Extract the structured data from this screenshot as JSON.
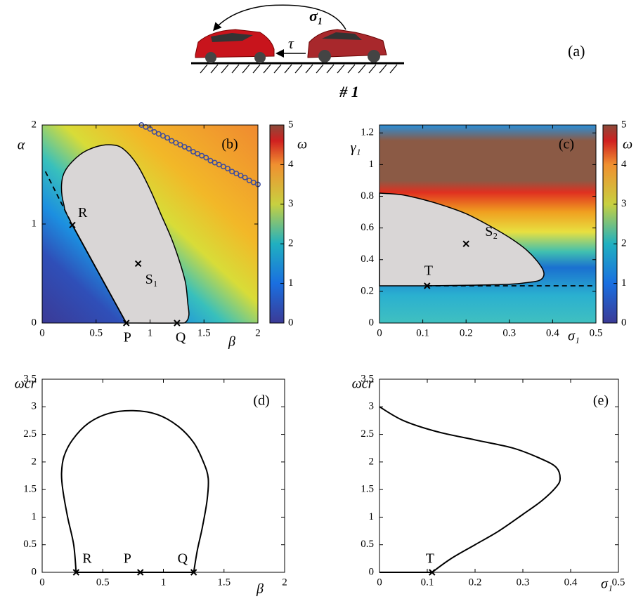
{
  "illustration": {
    "sigma_label": "σ₁",
    "tau_label": "τ",
    "panel_label": "(a)",
    "caption": "# 1"
  },
  "chart_data": [
    {
      "type": "region",
      "panel_label": "(b)",
      "x_label": "β",
      "y_label": "α",
      "colorbar_label": "ω",
      "xlim": [
        0,
        2
      ],
      "xticks": [
        0,
        0.5,
        1,
        1.5,
        2
      ],
      "ylim": [
        0,
        2
      ],
      "yticks": [
        0,
        1,
        2
      ],
      "colorbar_lim": [
        0,
        5
      ],
      "colorbar_ticks": [
        0,
        1,
        2,
        3,
        4,
        5
      ],
      "region": {
        "color": "#d9d6d6",
        "x": [
          0.78,
          0.28,
          0.2,
          0.18,
          0.22,
          0.35,
          0.5,
          0.64,
          0.75,
          0.88,
          1.0,
          1.1,
          1.2,
          1.28,
          1.33,
          1.35,
          1.36,
          1.33,
          1.25,
          0.78
        ],
        "y": [
          0,
          0.99,
          1.2,
          1.4,
          1.55,
          1.7,
          1.78,
          1.8,
          1.76,
          1.6,
          1.35,
          1.1,
          0.85,
          0.6,
          0.4,
          0.2,
          0.08,
          0.01,
          0,
          0
        ]
      },
      "lines": [
        {
          "style": "dashed",
          "x": [
            0.03,
            0.28
          ],
          "y": [
            1.53,
            0.99
          ]
        },
        {
          "style": "solid",
          "x": [
            0.28,
            0.78
          ],
          "y": [
            0.99,
            0
          ]
        }
      ],
      "markers": {
        "color": "#3a4aa0",
        "x": [
          0.92,
          0.96,
          1.0,
          1.04,
          1.08,
          1.12,
          1.16,
          1.2,
          1.24,
          1.28,
          1.32,
          1.36,
          1.4,
          1.44,
          1.48,
          1.52,
          1.56,
          1.6,
          1.64,
          1.68,
          1.72,
          1.76,
          1.8,
          1.84,
          1.88,
          1.92,
          1.96,
          2.0
        ],
        "y": [
          2.0,
          1.98,
          1.96,
          1.93,
          1.91,
          1.89,
          1.87,
          1.84,
          1.82,
          1.8,
          1.78,
          1.76,
          1.73,
          1.71,
          1.69,
          1.67,
          1.64,
          1.62,
          1.6,
          1.58,
          1.56,
          1.53,
          1.51,
          1.49,
          1.47,
          1.44,
          1.42,
          1.4
        ]
      },
      "points": [
        {
          "name": "R",
          "x": 0.28,
          "y": 0.99
        },
        {
          "name": "P",
          "x": 0.78,
          "y": 0
        },
        {
          "name": "Q",
          "x": 1.25,
          "y": 0
        },
        {
          "name": "S₁",
          "x": 0.89,
          "y": 0.6
        }
      ]
    },
    {
      "type": "region",
      "panel_label": "(c)",
      "x_label": "σ₁",
      "y_label": "γ₁",
      "colorbar_label": "ω",
      "xlim": [
        0,
        0.5
      ],
      "xticks": [
        0,
        0.1,
        0.2,
        0.3,
        0.4,
        0.5
      ],
      "ylim": [
        0,
        1.25
      ],
      "yticks": [
        0,
        0.2,
        0.4,
        0.6,
        0.8,
        1,
        1.2
      ],
      "colorbar_lim": [
        0,
        5
      ],
      "colorbar_ticks": [
        0,
        1,
        2,
        3,
        4,
        5
      ],
      "region": {
        "color": "#d9d6d6",
        "x": [
          0,
          0.05,
          0.1,
          0.15,
          0.2,
          0.25,
          0.3,
          0.34,
          0.37,
          0.38,
          0.37,
          0.34,
          0.3,
          0.2,
          0.1,
          0
        ],
        "y": [
          0.82,
          0.81,
          0.78,
          0.74,
          0.69,
          0.62,
          0.54,
          0.46,
          0.37,
          0.31,
          0.27,
          0.255,
          0.245,
          0.238,
          0.235,
          0.235
        ]
      },
      "lines": [
        {
          "style": "dashed",
          "x": [
            0.11,
            0.5
          ],
          "y": [
            0.235,
            0.235
          ]
        }
      ],
      "points": [
        {
          "name": "T",
          "x": 0.11,
          "y": 0.235
        },
        {
          "name": "S₂",
          "x": 0.2,
          "y": 0.5
        }
      ]
    },
    {
      "type": "line",
      "panel_label": "(d)",
      "x_label": "β",
      "y_label": "ωcr",
      "xlim": [
        0,
        2
      ],
      "xticks": [
        0,
        0.5,
        1,
        1.5,
        2
      ],
      "ylim": [
        0,
        3.5
      ],
      "yticks": [
        0,
        0.5,
        1,
        1.5,
        2,
        2.5,
        3,
        3.5
      ],
      "series": [
        {
          "color": "#000000",
          "x": [
            0.28,
            0.26,
            0.21,
            0.17,
            0.16,
            0.18,
            0.25,
            0.38,
            0.55,
            0.75,
            0.95,
            1.12,
            1.25,
            1.33,
            1.37,
            1.36,
            1.32,
            1.28,
            1.25
          ],
          "y": [
            0,
            0.5,
            1.0,
            1.5,
            1.8,
            2.1,
            2.4,
            2.7,
            2.88,
            2.93,
            2.86,
            2.65,
            2.35,
            2.0,
            1.7,
            1.3,
            0.8,
            0.4,
            0
          ]
        },
        {
          "color": "#000000",
          "x": [
            0.28,
            1.25
          ],
          "y": [
            0,
            0
          ]
        }
      ],
      "points": [
        {
          "name": "R",
          "x": 0.28,
          "y": 0
        },
        {
          "name": "P",
          "x": 0.81,
          "y": 0
        },
        {
          "name": "Q",
          "x": 1.25,
          "y": 0
        }
      ]
    },
    {
      "type": "line",
      "panel_label": "(e)",
      "x_label": "σ₁",
      "y_label": "ωcr",
      "xlim": [
        0,
        0.5
      ],
      "xticks": [
        0,
        0.1,
        0.2,
        0.3,
        0.4,
        0.5
      ],
      "ylim": [
        0,
        3.5
      ],
      "yticks": [
        0,
        0.5,
        1,
        1.5,
        2,
        2.5,
        3,
        3.5
      ],
      "series": [
        {
          "color": "#000000",
          "x": [
            0,
            0.11
          ],
          "y": [
            0,
            0
          ]
        },
        {
          "color": "#000000",
          "x": [
            0.11,
            0.15,
            0.2,
            0.25,
            0.3,
            0.34,
            0.37,
            0.378,
            0.37,
            0.34,
            0.28,
            0.2,
            0.12,
            0.05,
            0
          ],
          "y": [
            0,
            0.25,
            0.5,
            0.75,
            1.05,
            1.3,
            1.55,
            1.7,
            1.9,
            2.05,
            2.25,
            2.4,
            2.55,
            2.75,
            3.0
          ]
        }
      ],
      "points": [
        {
          "name": "T",
          "x": 0.11,
          "y": 0
        }
      ]
    }
  ]
}
